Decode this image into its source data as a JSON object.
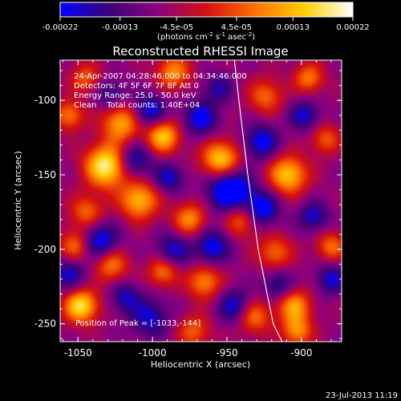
{
  "chart_data": {
    "type": "heatmap",
    "title": "Reconstructed RHESSI Image",
    "xlabel": "Heliocentric X (arcsec)",
    "ylabel": "Heliocentric Y (arcsec)",
    "x_ticks": [
      "-1050",
      "-1000",
      "-950",
      "-900"
    ],
    "x_tick_values": [
      -1050,
      -1000,
      -950,
      -900
    ],
    "y_ticks": [
      "-100",
      "-150",
      "-200",
      "-250"
    ],
    "y_tick_values": [
      -100,
      -150,
      -200,
      -250
    ],
    "xlim": [
      -1062,
      -873
    ],
    "ylim": [
      -262,
      -73
    ],
    "colorbar": {
      "ticks": [
        "-0.00022",
        "-0.00013",
        "-4.5e-05",
        "4.5e-05",
        "0.00013",
        "0.00022"
      ],
      "tick_values": [
        -0.00022,
        -0.00013,
        -4.5e-05,
        4.5e-05,
        0.00013,
        0.00022
      ],
      "range": [
        -0.00022,
        0.00022
      ],
      "units": "(photons cm-2 s-1 asec-2)",
      "colormap": [
        "#0000ff",
        "#3c0078",
        "#8a0080",
        "#d41010",
        "#ff7000",
        "#ffd000",
        "#ffffff"
      ]
    },
    "annotations": [
      "24-Apr-2007 04:28:46.000 to 04:34:46.000",
      "Detectors: 4F 5F 6F 7F 8F Att 0",
      "Energy Range: 25.0 - 50.0 keV",
      "Clean    Total counts: 1.40E+04"
    ],
    "peak_label": "Position of Peak = [-1033,-144]",
    "peak": [
      -1033,
      -144
    ],
    "limb_curve_x": [
      -945,
      -942,
      -936,
      -929,
      -919,
      -913
    ],
    "limb_curve_y": [
      -73,
      -100,
      -150,
      -200,
      -250,
      -262
    ],
    "blobs": [
      {
        "x": -1031,
        "y": -144,
        "v": 1.0,
        "s": 10
      },
      {
        "x": -1021,
        "y": -115,
        "v": 0.7,
        "s": 9
      },
      {
        "x": -993,
        "y": -124,
        "v": 0.8,
        "s": 8
      },
      {
        "x": -954,
        "y": -140,
        "v": 0.85,
        "s": 9
      },
      {
        "x": -986,
        "y": -81,
        "v": 0.6,
        "s": 8
      },
      {
        "x": -924,
        "y": -97,
        "v": 0.5,
        "s": 8
      },
      {
        "x": -895,
        "y": -85,
        "v": 0.55,
        "s": 7
      },
      {
        "x": -909,
        "y": -150,
        "v": 0.8,
        "s": 9
      },
      {
        "x": -884,
        "y": -126,
        "v": 0.45,
        "s": 7
      },
      {
        "x": -1009,
        "y": -167,
        "v": 0.75,
        "s": 9
      },
      {
        "x": -1044,
        "y": -175,
        "v": 0.5,
        "s": 8
      },
      {
        "x": -1051,
        "y": -198,
        "v": 0.6,
        "s": 8
      },
      {
        "x": -975,
        "y": -180,
        "v": 0.6,
        "s": 8
      },
      {
        "x": -940,
        "y": -180,
        "v": 0.55,
        "s": 8
      },
      {
        "x": -918,
        "y": -202,
        "v": 0.5,
        "s": 8
      },
      {
        "x": -880,
        "y": -198,
        "v": 0.5,
        "s": 7
      },
      {
        "x": -1048,
        "y": -238,
        "v": 0.9,
        "s": 8
      },
      {
        "x": -1028,
        "y": -210,
        "v": 0.6,
        "s": 8
      },
      {
        "x": -993,
        "y": -215,
        "v": 0.55,
        "s": 7
      },
      {
        "x": -965,
        "y": -222,
        "v": 0.6,
        "s": 8
      },
      {
        "x": -932,
        "y": -245,
        "v": 0.55,
        "s": 8
      },
      {
        "x": -905,
        "y": -238,
        "v": 0.65,
        "s": 8
      },
      {
        "x": -903,
        "y": -255,
        "v": 0.6,
        "s": 7
      },
      {
        "x": -972,
        "y": -255,
        "v": 0.45,
        "s": 8
      },
      {
        "x": -1056,
        "y": -110,
        "v": 0.55,
        "s": 7
      },
      {
        "x": -1045,
        "y": -85,
        "v": 0.45,
        "s": 7
      },
      {
        "x": -1002,
        "y": -246,
        "v": -0.5,
        "s": 9
      },
      {
        "x": -1036,
        "y": -195,
        "v": -0.7,
        "s": 9
      },
      {
        "x": -1002,
        "y": -107,
        "v": -0.6,
        "s": 8
      },
      {
        "x": -968,
        "y": -112,
        "v": -0.6,
        "s": 8
      },
      {
        "x": -948,
        "y": -160,
        "v": -0.9,
        "s": 10
      },
      {
        "x": -927,
        "y": -173,
        "v": -0.7,
        "s": 8
      },
      {
        "x": -927,
        "y": -128,
        "v": -0.6,
        "s": 8
      },
      {
        "x": -898,
        "y": -110,
        "v": -0.5,
        "s": 7
      },
      {
        "x": -1012,
        "y": -140,
        "v": -0.55,
        "s": 8
      },
      {
        "x": -989,
        "y": -152,
        "v": -0.5,
        "s": 7
      },
      {
        "x": -960,
        "y": -198,
        "v": -0.6,
        "s": 8
      },
      {
        "x": -986,
        "y": -200,
        "v": -0.5,
        "s": 8
      },
      {
        "x": -892,
        "y": -178,
        "v": -0.5,
        "s": 7
      },
      {
        "x": -880,
        "y": -220,
        "v": -0.5,
        "s": 7
      },
      {
        "x": -945,
        "y": -238,
        "v": -0.55,
        "s": 8
      },
      {
        "x": -1056,
        "y": -216,
        "v": -0.5,
        "s": 8
      },
      {
        "x": -1028,
        "y": -96,
        "v": -0.4,
        "s": 7
      },
      {
        "x": -956,
        "y": -92,
        "v": -0.4,
        "s": 7
      },
      {
        "x": -1018,
        "y": -232,
        "v": -0.45,
        "s": 7
      },
      {
        "x": -916,
        "y": -224,
        "v": -0.45,
        "s": 7
      }
    ]
  },
  "footer": {
    "date": "23-Jul-2013 11:19"
  }
}
